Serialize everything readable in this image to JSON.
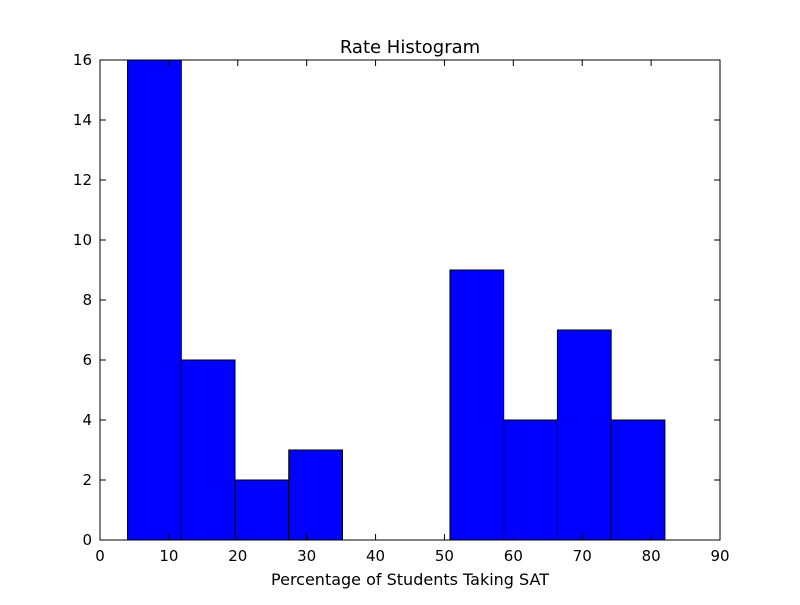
{
  "chart_data": {
    "type": "bar",
    "title": "Rate Histogram",
    "xlabel": "Percentage of Students Taking SAT",
    "ylabel": "",
    "bins": [
      {
        "x0": 4,
        "x1": 11.8,
        "count": 16
      },
      {
        "x0": 11.8,
        "x1": 19.6,
        "count": 6
      },
      {
        "x0": 19.6,
        "x1": 27.4,
        "count": 2
      },
      {
        "x0": 27.4,
        "x1": 35.2,
        "count": 3
      },
      {
        "x0": 35.2,
        "x1": 43.0,
        "count": 0
      },
      {
        "x0": 43.0,
        "x1": 50.8,
        "count": 0
      },
      {
        "x0": 50.8,
        "x1": 58.6,
        "count": 9
      },
      {
        "x0": 58.6,
        "x1": 66.4,
        "count": 4
      },
      {
        "x0": 66.4,
        "x1": 74.2,
        "count": 7
      },
      {
        "x0": 74.2,
        "x1": 82.0,
        "count": 4
      }
    ],
    "xlim": [
      0,
      90
    ],
    "ylim": [
      0,
      16
    ],
    "xticks": [
      0,
      10,
      20,
      30,
      40,
      50,
      60,
      70,
      80,
      90
    ],
    "yticks": [
      0,
      2,
      4,
      6,
      8,
      10,
      12,
      14,
      16
    ],
    "bar_color": "#0000ff",
    "edge_color": "#000000",
    "grid": false,
    "legend": false
  }
}
